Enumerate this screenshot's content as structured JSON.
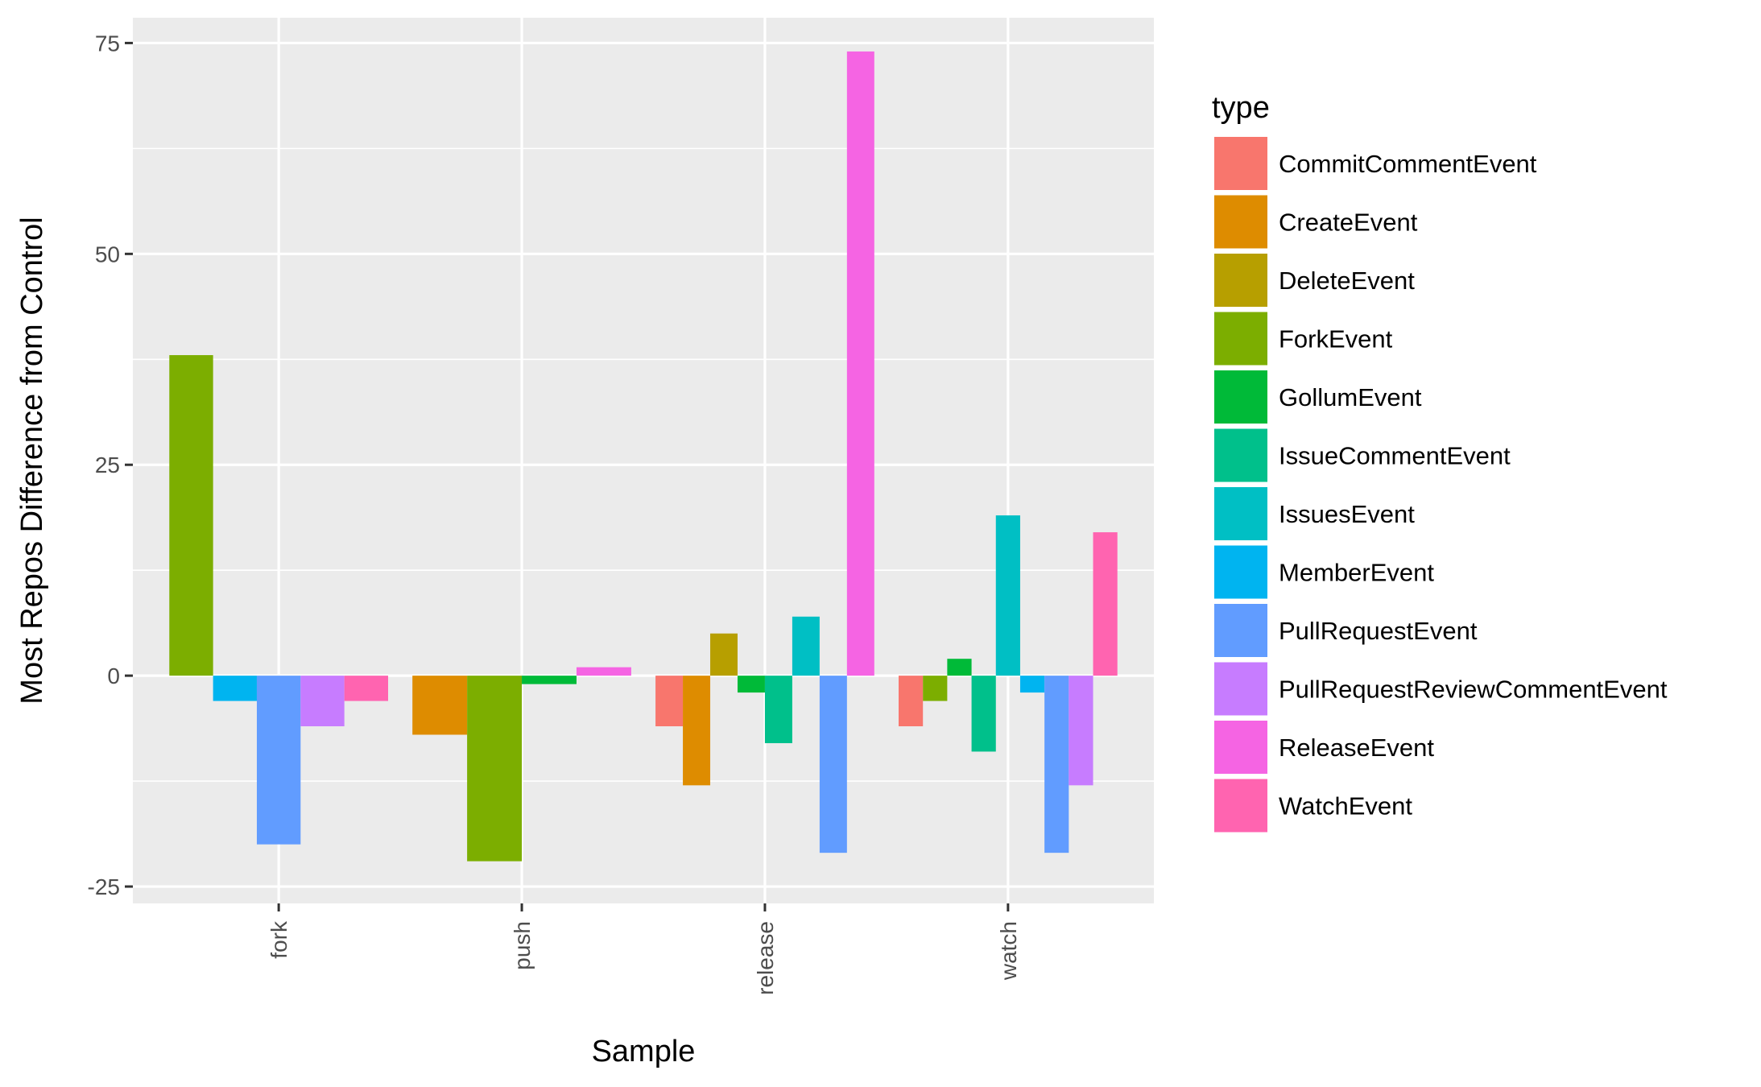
{
  "chart_data": {
    "type": "bar",
    "xlabel": "Sample",
    "ylabel": "Most Repos Difference from Control",
    "categories": [
      "fork",
      "push",
      "release",
      "watch"
    ],
    "ylim": [
      -27,
      78
    ],
    "yticks": [
      -25,
      0,
      25,
      50,
      75
    ],
    "grid": true,
    "legend": {
      "title": "type",
      "position": "right"
    },
    "series": [
      {
        "name": "CommitCommentEvent",
        "color": "#F8766D",
        "values": [
          null,
          null,
          -6,
          -6
        ]
      },
      {
        "name": "CreateEvent",
        "color": "#DE8C00",
        "values": [
          null,
          -7,
          -13,
          null
        ]
      },
      {
        "name": "DeleteEvent",
        "color": "#B79F00",
        "values": [
          null,
          null,
          5,
          null
        ]
      },
      {
        "name": "ForkEvent",
        "color": "#7CAE00",
        "values": [
          38,
          -22,
          null,
          -3
        ]
      },
      {
        "name": "GollumEvent",
        "color": "#00BA38",
        "values": [
          null,
          -1,
          -2,
          2
        ]
      },
      {
        "name": "IssueCommentEvent",
        "color": "#00C08B",
        "values": [
          null,
          null,
          -8,
          -9
        ]
      },
      {
        "name": "IssuesEvent",
        "color": "#00BFC4",
        "values": [
          null,
          null,
          7,
          19
        ]
      },
      {
        "name": "MemberEvent",
        "color": "#00B4F0",
        "values": [
          -3,
          null,
          null,
          -2
        ]
      },
      {
        "name": "PullRequestEvent",
        "color": "#619CFF",
        "values": [
          -20,
          null,
          -21,
          -21
        ]
      },
      {
        "name": "PullRequestReviewCommentEvent",
        "color": "#C77CFF",
        "values": [
          -6,
          null,
          null,
          -13
        ]
      },
      {
        "name": "ReleaseEvent",
        "color": "#F564E3",
        "values": [
          null,
          1,
          74,
          null
        ]
      },
      {
        "name": "WatchEvent",
        "color": "#FF64B0",
        "values": [
          -3,
          null,
          null,
          17
        ]
      }
    ]
  }
}
